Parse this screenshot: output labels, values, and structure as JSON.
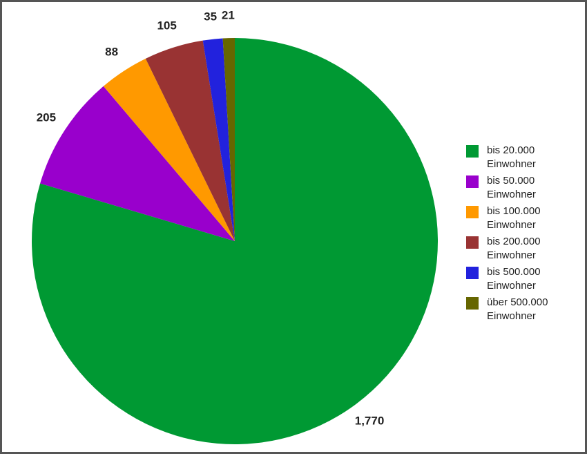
{
  "chart_data": {
    "type": "pie",
    "categories": [
      "bis 20.000 Einwohner",
      "bis 50.000 Einwohner",
      "bis 100.000 Einwohner",
      "bis 200.000 Einwohner",
      "bis 500.000 Einwohner",
      "über 500.000 Einwohner"
    ],
    "values": [
      1770,
      205,
      88,
      105,
      35,
      21
    ],
    "value_labels": [
      "1,770",
      "205",
      "88",
      "105",
      "35",
      "21"
    ],
    "colors": [
      "#009933",
      "#9900cc",
      "#ff9900",
      "#993333",
      "#2222dd",
      "#666600"
    ],
    "legend": "right"
  }
}
